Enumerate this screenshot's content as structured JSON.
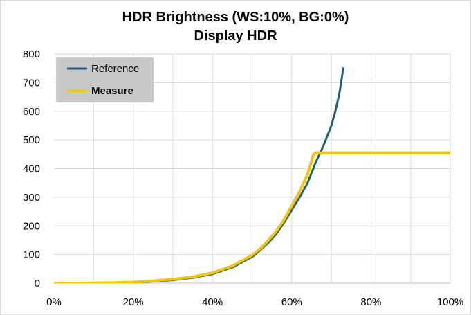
{
  "chart_data": {
    "type": "line",
    "title": "HDR Brightness (WS:10%, BG:0%)",
    "subtitle": "Display HDR",
    "xlabel": "",
    "ylabel": "",
    "xlim": [
      0,
      100
    ],
    "ylim": [
      0,
      800
    ],
    "x_ticks": [
      "0%",
      "20%",
      "40%",
      "60%",
      "80%",
      "100%"
    ],
    "x_tick_values": [
      0,
      20,
      40,
      60,
      80,
      100
    ],
    "y_ticks": [
      "0",
      "100",
      "200",
      "300",
      "400",
      "500",
      "600",
      "700",
      "800"
    ],
    "y_tick_values": [
      0,
      100,
      200,
      300,
      400,
      500,
      600,
      700,
      800
    ],
    "grid": true,
    "legend_position": "top-left",
    "series": [
      {
        "name": "Reference",
        "color": "#1f5f7a",
        "bold": false,
        "x": [
          0,
          5,
          10,
          15,
          20,
          25,
          30,
          35,
          40,
          45,
          50,
          52,
          54,
          56,
          58,
          60,
          62,
          64,
          66,
          68,
          70,
          71,
          72,
          73
        ],
        "y": [
          0,
          0.1,
          0.3,
          1,
          2.5,
          6,
          11,
          19,
          32,
          55,
          92,
          115,
          140,
          170,
          210,
          255,
          300,
          350,
          420,
          480,
          550,
          600,
          660,
          750
        ]
      },
      {
        "name": "Measure",
        "color": "#f2c600",
        "bold": true,
        "x": [
          0,
          5,
          10,
          15,
          20,
          25,
          30,
          35,
          40,
          45,
          50,
          52,
          54,
          56,
          58,
          60,
          62,
          64,
          65.5,
          66,
          70,
          80,
          90,
          100
        ],
        "y": [
          0,
          0.2,
          0.5,
          1.5,
          3.5,
          8,
          14,
          22,
          36,
          60,
          98,
          120,
          148,
          180,
          220,
          270,
          320,
          380,
          450,
          455,
          455,
          455,
          455,
          455
        ]
      }
    ]
  }
}
